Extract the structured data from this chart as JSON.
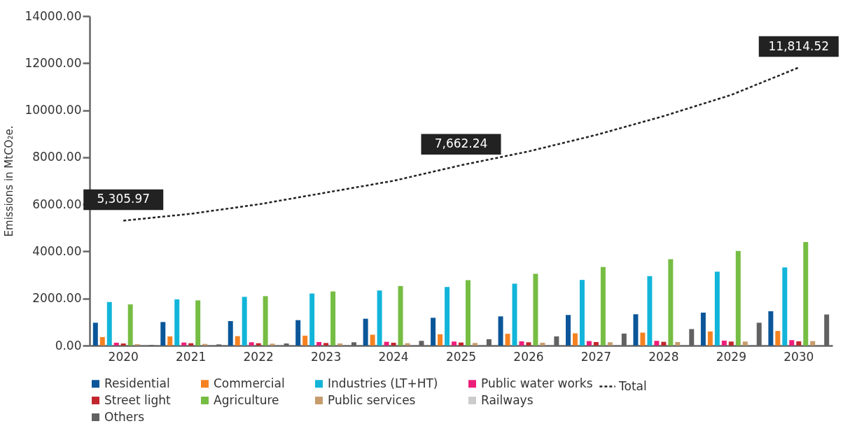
{
  "chart_data": {
    "type": "bar",
    "ylabel": "Emissions in MtCO₂e.",
    "categories": [
      "2020",
      "2021",
      "2022",
      "2023",
      "2024",
      "2025",
      "2026",
      "2027",
      "2028",
      "2029",
      "2030"
    ],
    "ylim": [
      0,
      14000
    ],
    "yticks": [
      {
        "value": 0,
        "label": "0.00"
      },
      {
        "value": 2000,
        "label": "2000.00"
      },
      {
        "value": 4000,
        "label": "4000.00"
      },
      {
        "value": 6000,
        "label": "6000.00"
      },
      {
        "value": 8000,
        "label": "8000.00"
      },
      {
        "value": 10000,
        "label": "10000.00"
      },
      {
        "value": 12000,
        "label": "12000.00"
      },
      {
        "value": 14000,
        "label": "14000.00"
      }
    ],
    "legend": "bottom",
    "series": [
      {
        "name": "Residential",
        "color": "#0b5699",
        "values": [
          970,
          1000,
          1040,
          1080,
          1140,
          1180,
          1240,
          1300,
          1330,
          1400,
          1460
        ]
      },
      {
        "name": "Commercial",
        "color": "#f58220",
        "values": [
          360,
          390,
          400,
          420,
          460,
          480,
          500,
          520,
          550,
          600,
          620
        ]
      },
      {
        "name": "Industries (LT+HT)",
        "color": "#12b5d9",
        "values": [
          1850,
          1960,
          2070,
          2210,
          2340,
          2490,
          2630,
          2790,
          2950,
          3140,
          3320
        ]
      },
      {
        "name": "Public water works",
        "color": "#ed1e79",
        "values": [
          120,
          130,
          140,
          150,
          160,
          170,
          180,
          190,
          200,
          210,
          230
        ]
      },
      {
        "name": "Street light",
        "color": "#c1272d",
        "values": [
          90,
          100,
          100,
          110,
          120,
          130,
          140,
          150,
          160,
          170,
          180
        ]
      },
      {
        "name": "Agriculture",
        "color": "#76bd43",
        "values": [
          1750,
          1920,
          2100,
          2300,
          2530,
          2780,
          3050,
          3340,
          3670,
          4020,
          4400
        ]
      },
      {
        "name": "Public services",
        "color": "#c69c6d",
        "values": [
          60,
          70,
          80,
          90,
          100,
          110,
          120,
          140,
          150,
          170,
          190
        ]
      },
      {
        "name": "Railways",
        "color": "#cccccc",
        "values": [
          null,
          null,
          null,
          null,
          null,
          null,
          null,
          null,
          null,
          null,
          null
        ]
      },
      {
        "name": "Others",
        "color": "#616161",
        "values": [
          30,
          50,
          90,
          140,
          200,
          270,
          390,
          510,
          700,
          970,
          1320
        ]
      },
      {
        "name": "Total",
        "type": "line",
        "line_style": "dashed",
        "color": "#222222",
        "values": [
          5305.97,
          5600,
          6000,
          6500,
          7000,
          7662.24,
          8250,
          8950,
          9750,
          10650,
          11814.52
        ],
        "value_labels": [
          "5,305.97",
          null,
          null,
          null,
          null,
          "7,662.24",
          null,
          null,
          null,
          null,
          "11,814.52"
        ]
      }
    ]
  }
}
